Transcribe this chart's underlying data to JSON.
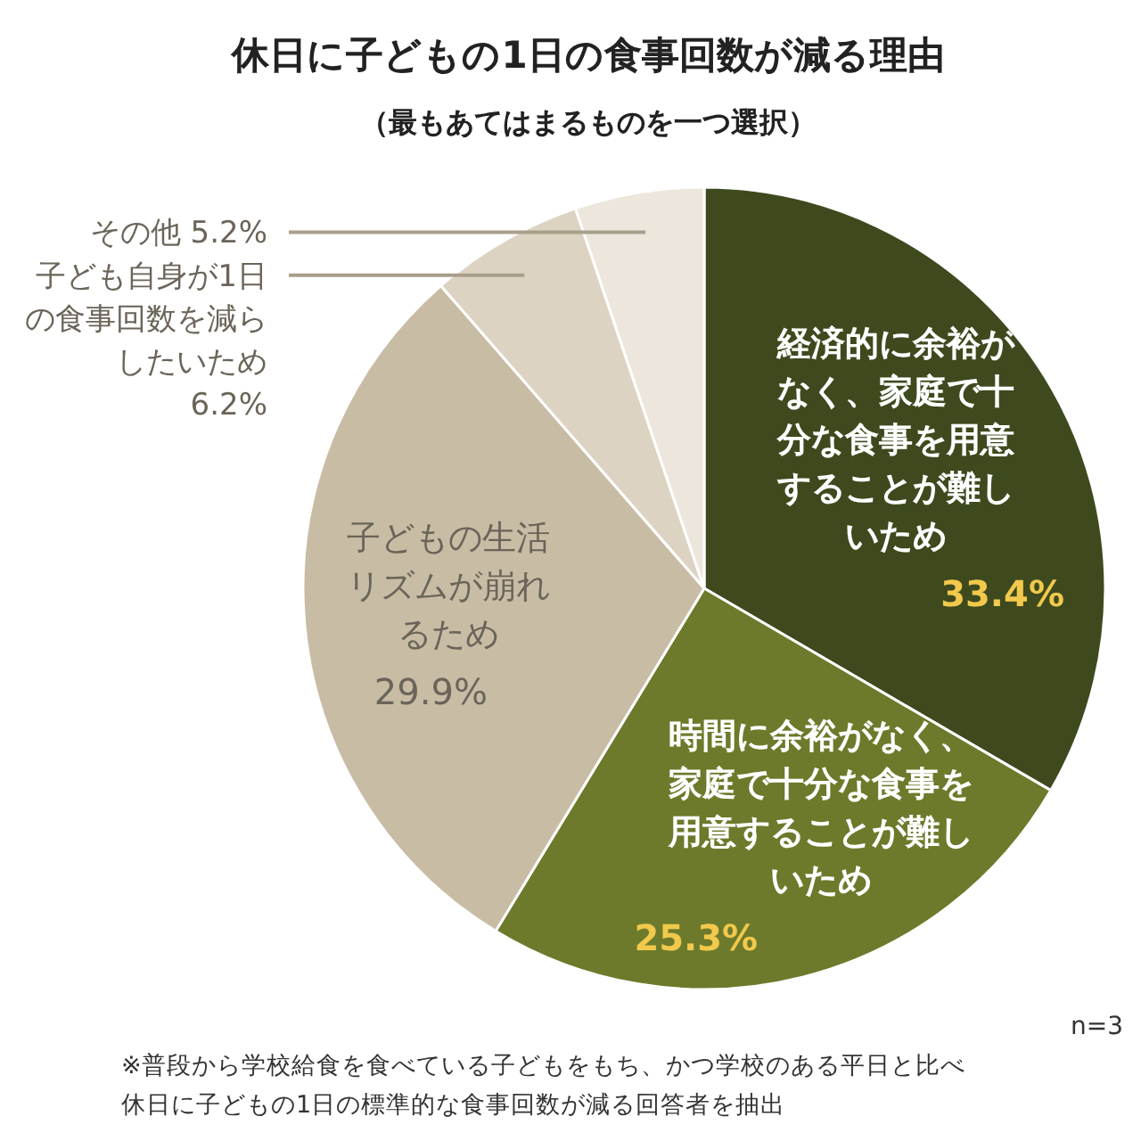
{
  "chart_data": {
    "type": "pie",
    "title": "休日に子どもの1日の食事回数が減る理由",
    "subtitle": "（最もあてはまるものを一つ選択）",
    "categories": [
      "経済的に余裕がなく、家庭で十分な食事を用意することが難しいため",
      "時間に余裕がなく、家庭で十分な食事を用意することが難しいため",
      "子どもの生活リズムが崩れるため",
      "子ども自身が1日の食事回数を減らしたいため",
      "その他"
    ],
    "values": [
      33.4,
      25.3,
      29.9,
      6.2,
      5.2
    ],
    "value_labels": [
      "33.4%",
      "25.3%",
      "29.9%",
      "6.2%",
      "5.2%"
    ],
    "colors": [
      "#3e4a1e",
      "#6d7a2b",
      "#c8bca5",
      "#ddd3c3",
      "#ece6dc"
    ],
    "annotations": [
      "n=3",
      "※普段から学校給食を食べている子どもをもち、かつ学校のある平日と比べ",
      "休日に子どもの1日の標準的な食事回数が減る回答者を抽出"
    ]
  }
}
